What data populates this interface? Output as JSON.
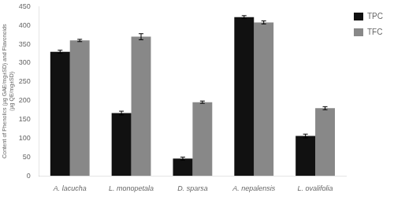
{
  "chart_data": {
    "type": "bar",
    "categories": [
      "A. lacucha",
      "L. monopetala",
      "D. sparsa",
      "A. nepalensis",
      "L. ovalifolia"
    ],
    "series": [
      {
        "name": "TPC",
        "color": "#111111",
        "values": [
          330,
          167,
          46,
          422,
          106
        ],
        "errors": [
          4,
          5,
          4,
          4,
          5
        ]
      },
      {
        "name": "TFC",
        "color": "#888888",
        "values": [
          360,
          370,
          196,
          408,
          180
        ],
        "errors": [
          3,
          8,
          3,
          4,
          4
        ]
      }
    ],
    "ylabel": "Content of Phenolics (µg GAE/mg±SD) and Flavonoids\n(µg QE/mg±SD)",
    "ylim": [
      0,
      450
    ],
    "yticks": [
      0,
      50,
      100,
      150,
      200,
      250,
      300,
      350,
      400,
      450
    ],
    "grid": false,
    "legend": "upper right"
  }
}
